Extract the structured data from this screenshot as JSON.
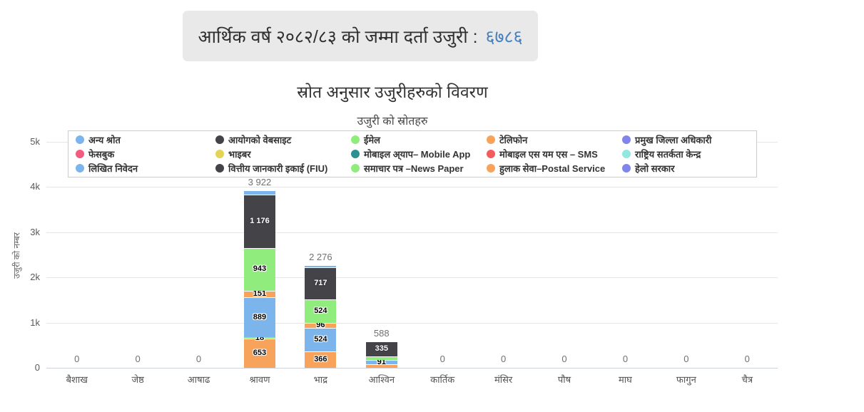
{
  "header": {
    "prefix": "आर्थिक वर्ष २०८२/८३ को जम्मा दर्ता उजुरी : ",
    "total_value": "६७८६"
  },
  "chart_data": {
    "type": "bar",
    "stacked": true,
    "title": "स्रोत अनुसार उजुरीहरुको विवरण",
    "subtitle": "उजुरी को स्रोतहरु",
    "ylabel": "उजुरी को नम्बर",
    "xlabel": "",
    "ylim": [
      0,
      5000
    ],
    "grid": true,
    "legend_position": "top",
    "yticks": [
      {
        "value": 0,
        "label": "0"
      },
      {
        "value": 1000,
        "label": "1k"
      },
      {
        "value": 2000,
        "label": "2k"
      },
      {
        "value": 3000,
        "label": "3k"
      },
      {
        "value": 4000,
        "label": "4k"
      },
      {
        "value": 5000,
        "label": "5k"
      }
    ],
    "categories": [
      "बैशाख",
      "जेष्ठ",
      "आषाढ",
      "श्रावण",
      "भाद्र",
      "आश्विन",
      "कार्तिक",
      "मंसिर",
      "पौष",
      "माघ",
      "फागुन",
      "चैत्र"
    ],
    "legend": [
      {
        "label": "अन्य श्रोत",
        "color": "#7cb5ec"
      },
      {
        "label": "आयोगको वेबसाइट",
        "color": "#434348"
      },
      {
        "label": "ईमेल",
        "color": "#90ed7d"
      },
      {
        "label": "टेलिफोन",
        "color": "#f7a35c"
      },
      {
        "label": "प्रमुख जिल्ला अधिकारी",
        "color": "#8085e9"
      },
      {
        "label": "फेसबुक",
        "color": "#f15c80"
      },
      {
        "label": "भाइबर",
        "color": "#e4d354"
      },
      {
        "label": "मोबाइल अ्याप– Mobile App",
        "color": "#2b908f"
      },
      {
        "label": "मोबाइल एस यम एस – SMS",
        "color": "#f45b5b"
      },
      {
        "label": "राष्ट्रिय सतर्कता केन्द्र",
        "color": "#91e8e1"
      },
      {
        "label": "लिखित निवेदन",
        "color": "#7cb5ec"
      },
      {
        "label": "वित्तीय जानकारी इकाई (FIU)",
        "color": "#434348"
      },
      {
        "label": "समाचार पत्र –News Paper",
        "color": "#90ed7d"
      },
      {
        "label": "हुलाक सेवा–Postal Service",
        "color": "#f7a35c"
      },
      {
        "label": "हेलो सरकार",
        "color": "#8085e9"
      }
    ],
    "zero_label": "0",
    "bars": [
      {
        "category_index": 3,
        "total": 3922,
        "total_label": "3 922",
        "segments": [
          {
            "series": "हुलाक सेवा–Postal Service",
            "value": 653,
            "label": "653"
          },
          {
            "series": "समाचार पत्र –News Paper",
            "value": 18,
            "label": "18"
          },
          {
            "series": "लिखित निवेदन",
            "value": 889,
            "label": "889"
          },
          {
            "series": "टेलिफोन",
            "value": 151,
            "label": "151"
          },
          {
            "series": "ईमेल",
            "value": 943,
            "label": "943"
          },
          {
            "series": "आयोगको वेबसाइट",
            "value": 1176,
            "label": "1 176"
          },
          {
            "series": "अन्य श्रोत",
            "value": 92,
            "label": null
          }
        ]
      },
      {
        "category_index": 4,
        "total": 2276,
        "total_label": "2 276",
        "segments": [
          {
            "series": "हुलाक सेवा–Postal Service",
            "value": 366,
            "label": "366"
          },
          {
            "series": "लिखित निवेदन",
            "value": 524,
            "label": "524"
          },
          {
            "series": "टेलिफोन",
            "value": 96,
            "label": "96"
          },
          {
            "series": "ईमेल",
            "value": 524,
            "label": "524"
          },
          {
            "series": "आयोगको वेबसाइट",
            "value": 717,
            "label": "717"
          },
          {
            "series": "अन्य श्रोत",
            "value": 49,
            "label": null
          }
        ]
      },
      {
        "category_index": 5,
        "total": 588,
        "total_label": "588",
        "segments": [
          {
            "series": "हुलाक सेवा–Postal Service",
            "value": 80,
            "label": null
          },
          {
            "series": "लिखित निवेदन",
            "value": 91,
            "label": "91"
          },
          {
            "series": "ईमेल",
            "value": 82,
            "label": null
          },
          {
            "series": "आयोगको वेबसाइट",
            "value": 335,
            "label": "335"
          }
        ]
      }
    ]
  }
}
